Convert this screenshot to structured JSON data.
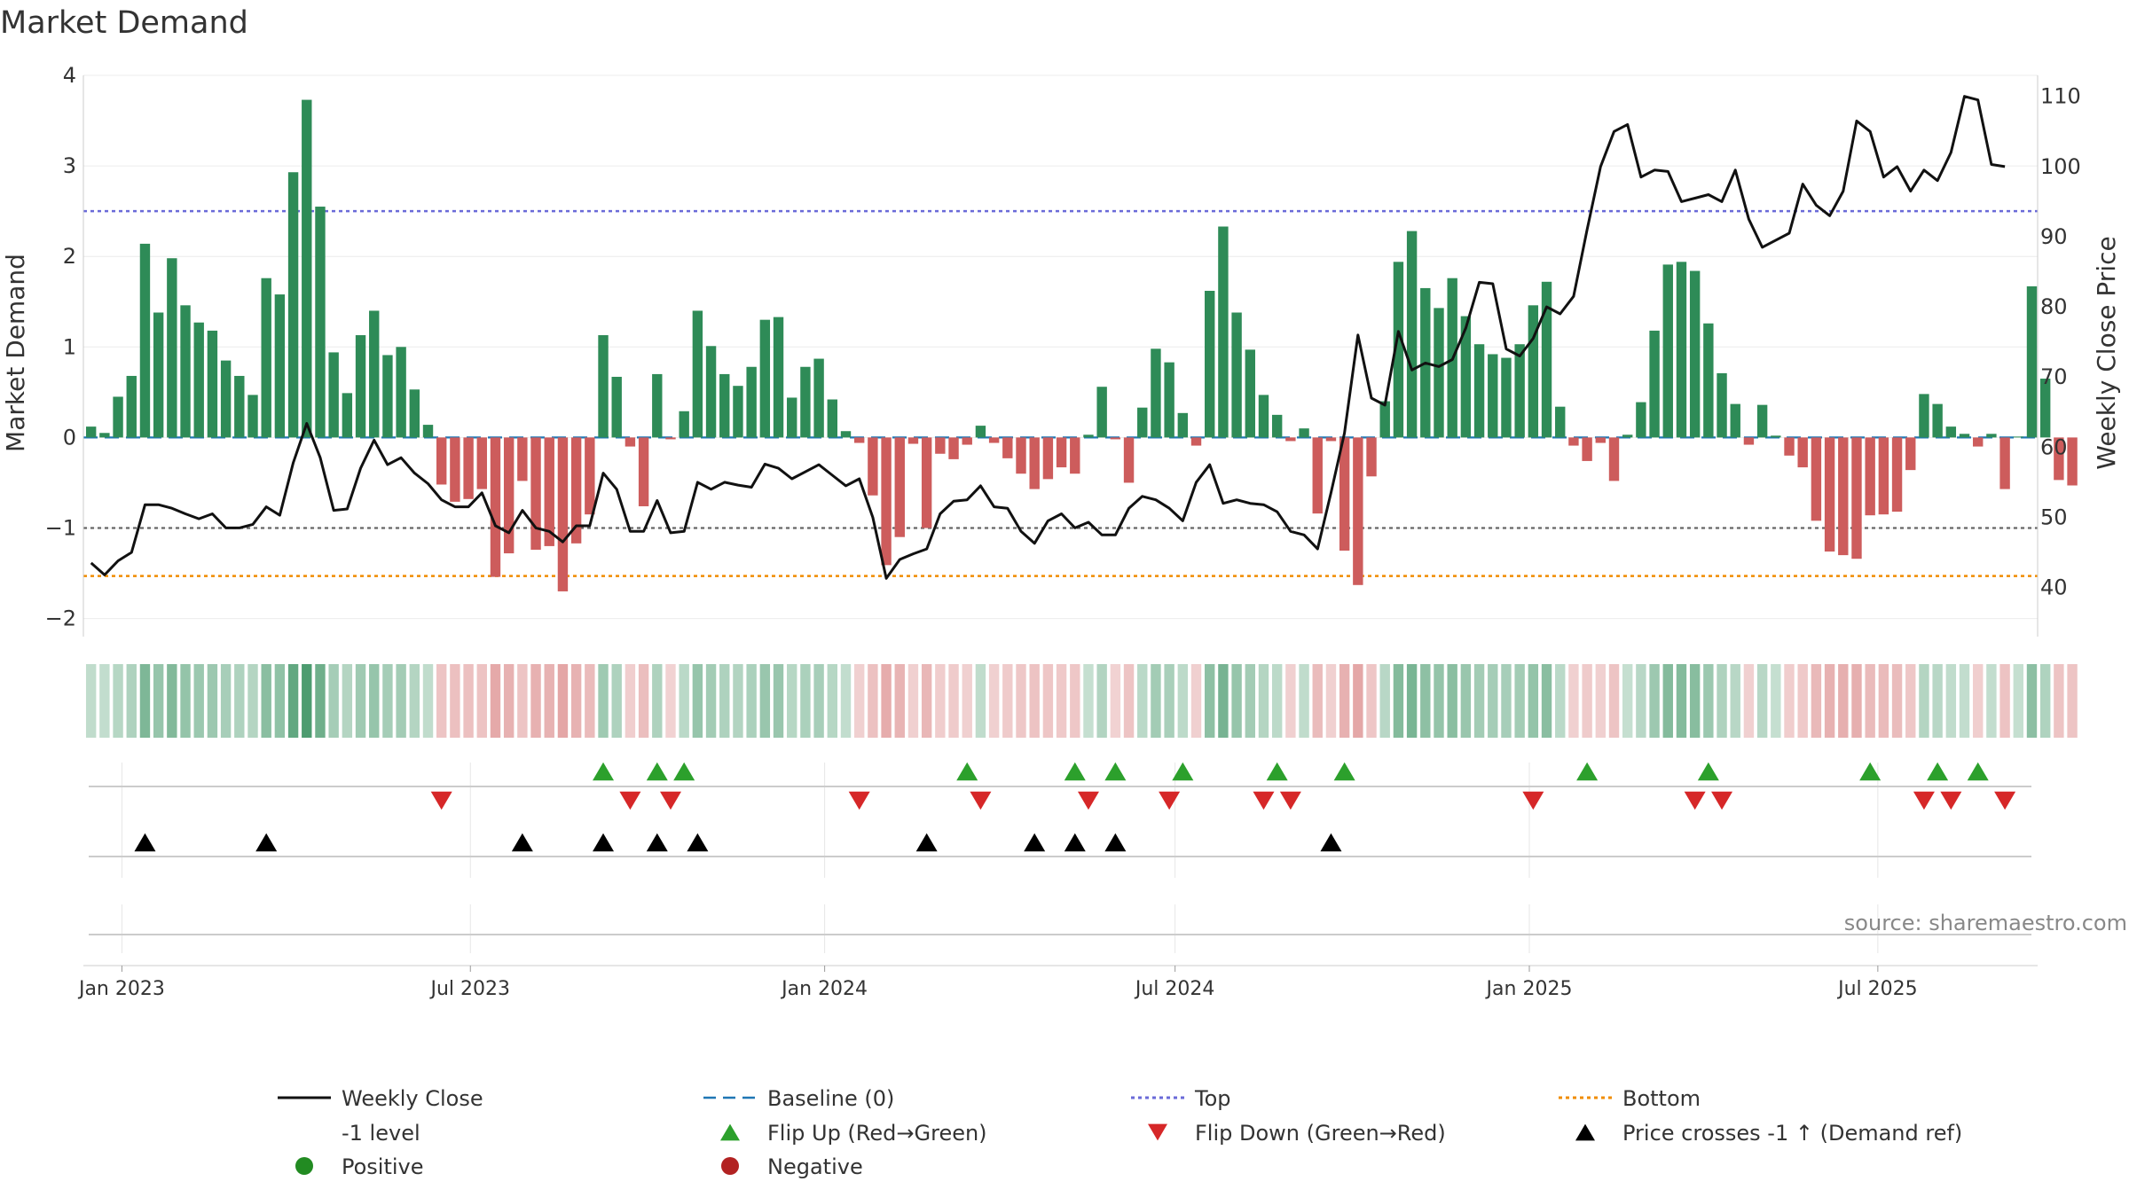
{
  "chart_data": {
    "type": "bar",
    "title": "Market Demand",
    "ylabel": "Market Demand",
    "y2label": "Weekly Close Price",
    "ylim": [
      -2.2,
      4.0
    ],
    "y2lim": [
      33,
      113
    ],
    "yticks": [
      -2,
      -1,
      0,
      1,
      2,
      3,
      4
    ],
    "yticklabels": [
      "−2",
      "−1",
      "0",
      "1",
      "2",
      "3",
      "4"
    ],
    "y2ticks": [
      40,
      50,
      60,
      70,
      80,
      90,
      100,
      110
    ],
    "x_start": "2022-12-16",
    "x_step_days": 7,
    "xlim": [
      "2022-12-12",
      "2025-09-22"
    ],
    "x_ticks": [
      {
        "date": "2023-01-01",
        "label": "Jan 2023"
      },
      {
        "date": "2023-07-01",
        "label": "Jul 2023"
      },
      {
        "date": "2024-01-01",
        "label": "Jan 2024"
      },
      {
        "date": "2024-07-01",
        "label": "Jul 2024"
      },
      {
        "date": "2025-01-01",
        "label": "Jan 2025"
      },
      {
        "date": "2025-07-01",
        "label": "Jul 2025"
      }
    ],
    "top_level": 2.5,
    "bottom_level": -1.53,
    "minus1_level": -1,
    "demand": [
      0.12,
      0.05,
      0.45,
      0.68,
      2.14,
      1.38,
      1.98,
      1.46,
      1.27,
      1.18,
      0.85,
      0.68,
      0.47,
      1.76,
      1.58,
      2.93,
      3.73,
      2.55,
      0.94,
      0.49,
      1.13,
      1.4,
      0.91,
      1.0,
      0.53,
      0.14,
      -0.52,
      -0.71,
      -0.68,
      -0.57,
      -1.54,
      -1.28,
      -0.48,
      -1.24,
      -1.2,
      -1.7,
      -1.17,
      -0.85,
      1.13,
      0.67,
      -0.1,
      -0.76,
      0.7,
      -0.02,
      0.29,
      1.4,
      1.01,
      0.7,
      0.57,
      0.78,
      1.3,
      1.33,
      0.44,
      0.78,
      0.87,
      0.42,
      0.07,
      -0.06,
      -0.64,
      -1.41,
      -1.1,
      -0.07,
      -1.0,
      -0.18,
      -0.24,
      -0.08,
      0.13,
      -0.06,
      -0.23,
      -0.4,
      -0.57,
      -0.46,
      -0.33,
      -0.4,
      0.03,
      0.56,
      -0.02,
      -0.5,
      0.33,
      0.98,
      0.83,
      0.27,
      -0.09,
      1.62,
      2.33,
      1.38,
      0.97,
      0.47,
      0.25,
      -0.04,
      0.1,
      -0.84,
      -0.04,
      -1.25,
      -1.63,
      -0.43,
      0.4,
      1.94,
      2.28,
      1.65,
      1.43,
      1.76,
      1.34,
      1.03,
      0.92,
      0.88,
      1.03,
      1.46,
      1.72,
      0.34,
      -0.09,
      -0.26,
      -0.06,
      -0.48,
      0.03,
      0.39,
      1.18,
      1.91,
      1.94,
      1.84,
      1.26,
      0.71,
      0.37,
      -0.08,
      0.36,
      0.02,
      -0.2,
      -0.33,
      -0.92,
      -1.26,
      -1.3,
      -1.34,
      -0.86,
      -0.85,
      -0.82,
      -0.36,
      0.48,
      0.37,
      0.12,
      0.04,
      -0.1,
      0.04,
      -0.57,
      0.01,
      1.67,
      0.65,
      -0.47,
      -0.53
    ],
    "close": [
      43.5,
      41.8,
      43.8,
      45.0,
      51.8,
      51.8,
      51.3,
      50.5,
      49.8,
      50.5,
      48.5,
      48.5,
      49.0,
      51.5,
      50.3,
      57.8,
      63.4,
      58.5,
      51.0,
      51.2,
      57.0,
      61.0,
      57.5,
      58.5,
      56.3,
      54.8,
      52.5,
      51.5,
      51.5,
      53.5,
      48.8,
      47.8,
      51.0,
      48.5,
      48.0,
      46.5,
      48.8,
      48.8,
      56.3,
      54.0,
      48.0,
      48.0,
      52.4,
      47.8,
      48.0,
      55.0,
      54.0,
      55.0,
      54.6,
      54.3,
      57.6,
      57.0,
      55.5,
      56.5,
      57.5,
      56.0,
      54.5,
      55.5,
      50.0,
      41.3,
      44.0,
      44.8,
      45.5,
      50.5,
      52.3,
      52.5,
      54.5,
      51.5,
      51.3,
      48.0,
      46.3,
      49.5,
      50.5,
      48.5,
      49.3,
      47.5,
      47.5,
      51.3,
      53.0,
      52.5,
      51.3,
      49.5,
      55.0,
      57.5,
      52.0,
      52.5,
      52.0,
      51.8,
      50.8,
      48.0,
      47.5,
      45.5,
      53.5,
      62.0,
      76.0,
      67.0,
      66.0,
      76.5,
      71.0,
      72.0,
      71.5,
      72.5,
      77.0,
      83.5,
      83.3,
      74.0,
      73.0,
      75.5,
      80.0,
      79.0,
      81.5,
      91.0,
      100.0,
      105.0,
      106.0,
      98.5,
      99.5,
      99.3,
      95.0,
      95.5,
      96.0,
      95.0,
      99.5,
      92.5,
      88.5,
      89.5,
      90.5,
      97.5,
      94.5,
      93.0,
      96.5,
      106.5,
      105.0,
      98.5,
      100.0,
      96.5,
      99.5,
      98.0,
      102.0,
      110.0,
      109.5,
      100.3,
      100.0
    ],
    "flip_up_weeks": [
      38,
      42,
      44,
      65,
      73,
      76,
      81,
      88,
      93,
      111,
      120,
      132,
      137,
      140
    ],
    "flip_down_weeks": [
      26,
      40,
      43,
      57,
      66,
      74,
      80,
      87,
      89,
      107,
      119,
      121,
      136,
      138,
      142
    ],
    "price_cross_weeks": [
      4,
      13,
      32,
      38,
      42,
      45,
      62,
      70,
      73,
      76,
      92
    ],
    "colors": {
      "positive_bar": "#2e8b57",
      "negative_bar": "#cd5c5c",
      "weekly_close": "#111111",
      "baseline": "#1f77b4",
      "top_line": "#6a6ad8",
      "bottom_line": "#f08c00",
      "minus1_line": "#666666",
      "flip_up": "#2ca02c",
      "flip_down": "#d62728",
      "price_cross": "#000000",
      "positive_dot": "#228b22",
      "negative_dot": "#b22222"
    },
    "legend": [
      {
        "label": "Weekly Close",
        "kind": "solid-line",
        "color": "#111111"
      },
      {
        "label": "Baseline (0)",
        "kind": "dash-line",
        "color": "#1f77b4"
      },
      {
        "label": "Top",
        "kind": "dot-line",
        "color": "#6a6ad8"
      },
      {
        "label": "Bottom",
        "kind": "dot-line",
        "color": "#f08c00"
      },
      {
        "label": "-1 level",
        "kind": "dash-line-thin",
        "color": "#666666"
      },
      {
        "label": "Flip Up (Red→Green)",
        "kind": "triangle-up",
        "color": "#2ca02c"
      },
      {
        "label": "Flip Down (Green→Red)",
        "kind": "triangle-down",
        "color": "#d62728"
      },
      {
        "label": "Price crosses -1 ↑ (Demand ref)",
        "kind": "triangle-up",
        "color": "#000000"
      },
      {
        "label": "Positive",
        "kind": "dot",
        "color": "#228b22"
      },
      {
        "label": "Negative",
        "kind": "dot",
        "color": "#b22222"
      }
    ],
    "legend_placement": "bottom"
  },
  "source": "source: sharemaestro.com"
}
